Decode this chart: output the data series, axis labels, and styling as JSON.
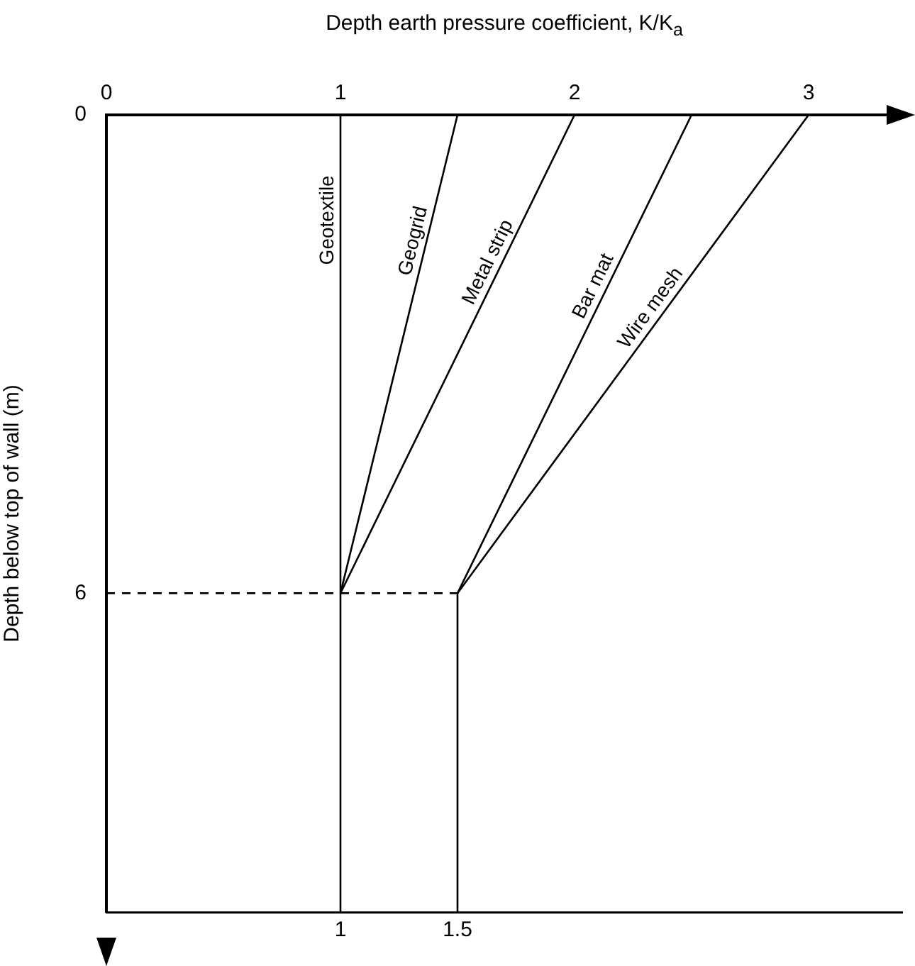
{
  "chart_data": {
    "type": "line",
    "x2label": "Depth earth pressure coefficient, K/K$_{a}$",
    "ylabel": "Depth below top of wall (m)",
    "xlim": [
      0,
      3.4
    ],
    "xticks": [
      1,
      1.5
    ],
    "x2lim": [
      0,
      3.4
    ],
    "x2ticks": [
      0,
      1,
      2,
      3
    ],
    "ylim": [
      10,
      0
    ],
    "yticks": [
      0,
      6
    ],
    "grid": false,
    "legend": false,
    "marker": "none",
    "series": [
      {
        "name": "Geotextile",
        "color": "#000000",
        "x": [
          1,
          1,
          1
        ],
        "values": [
          0,
          6,
          10
        ]
      },
      {
        "name": "Geogrid",
        "color": "#000000",
        "x": [
          1.5,
          1
        ],
        "values": [
          0,
          6
        ]
      },
      {
        "name": "Metal strip",
        "color": "#000000",
        "x": [
          2,
          1
        ],
        "values": [
          0,
          6
        ]
      },
      {
        "name": "Bar mat",
        "color": "#000000",
        "x": [
          2.5,
          1.5,
          1.5
        ],
        "values": [
          0,
          6,
          10
        ]
      },
      {
        "name": "Wire mesh",
        "color": "#000000",
        "x": [
          3,
          1.5
        ],
        "values": [
          0,
          6
        ]
      },
      {
        "color": "#000000",
        "x": [
          0,
          1.5
        ],
        "values": [
          6,
          6
        ],
        "line_style": "dashed"
      }
    ]
  }
}
